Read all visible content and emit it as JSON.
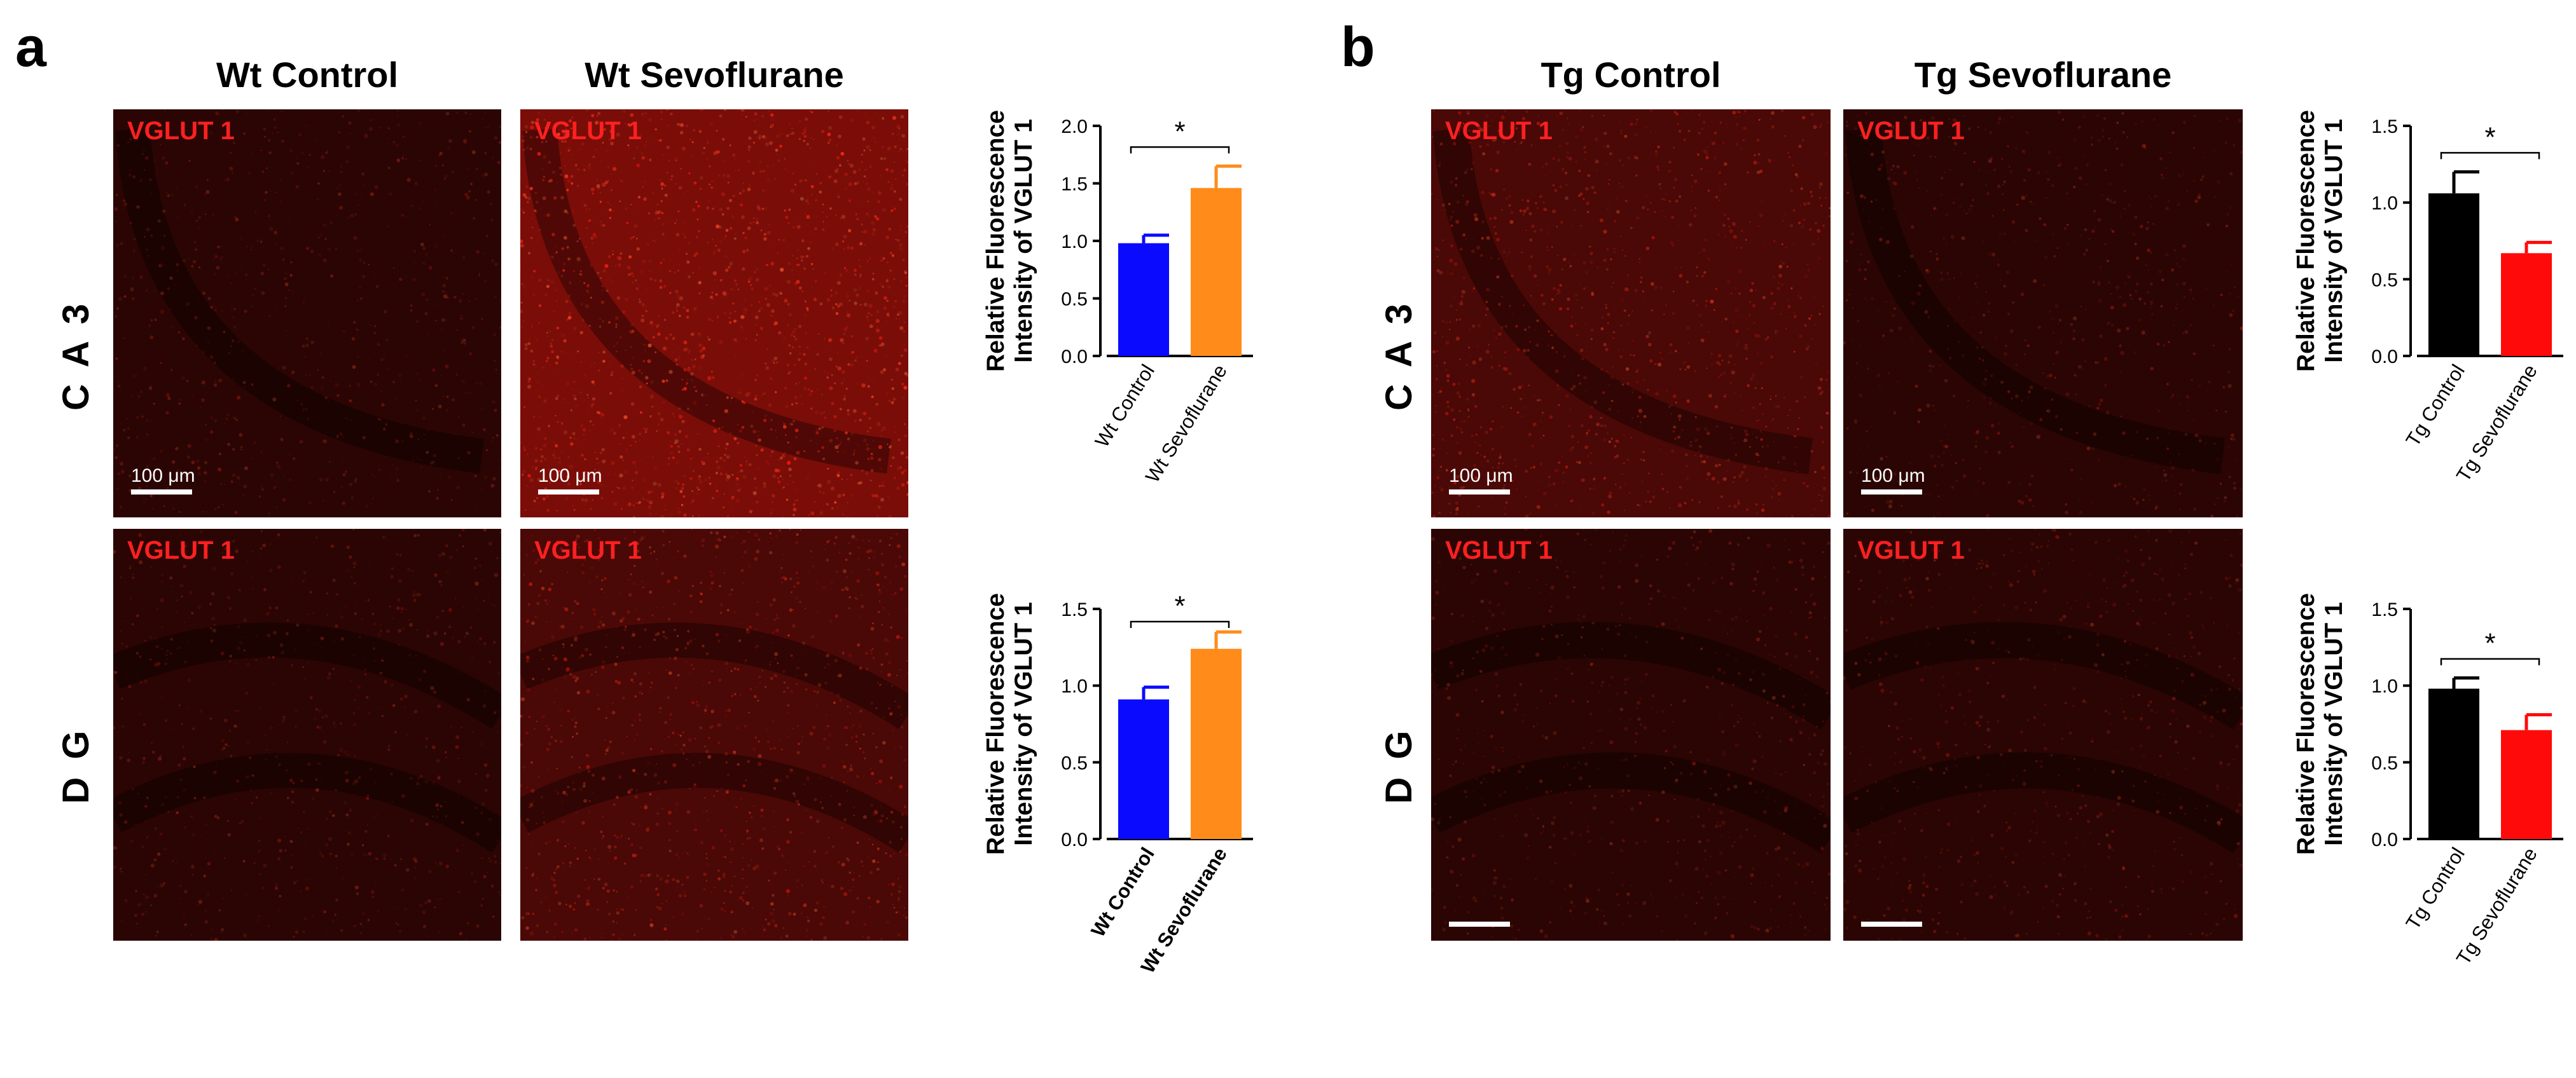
{
  "figure": {
    "panel_a": {
      "letter": "a",
      "col_titles": [
        "Wt Control",
        "Wt Sevoflurane"
      ],
      "row_labels": [
        "C A 3",
        "D G"
      ],
      "images": [
        {
          "stain": "VGLUT 1",
          "scale": "100 μm",
          "brightness": "low",
          "pattern": "ca3"
        },
        {
          "stain": "VGLUT 1",
          "scale": "100 μm",
          "brightness": "high",
          "pattern": "ca3"
        },
        {
          "stain": "VGLUT 1",
          "scale": "",
          "brightness": "low",
          "pattern": "dg"
        },
        {
          "stain": "VGLUT 1",
          "scale": "",
          "brightness": "mid",
          "pattern": "dg"
        }
      ]
    },
    "panel_b": {
      "letter": "b",
      "col_titles": [
        "Tg Control",
        "Tg Sevoflurane"
      ],
      "row_labels": [
        "C A 3",
        "D G"
      ],
      "images": [
        {
          "stain": "VGLUT 1",
          "scale": "100 μm",
          "brightness": "mid",
          "pattern": "ca3"
        },
        {
          "stain": "VGLUT 1",
          "scale": "100 μm",
          "brightness": "low",
          "pattern": "ca3"
        },
        {
          "stain": "VGLUT 1",
          "scale": "",
          "brightness": "low",
          "pattern": "dg"
        },
        {
          "stain": "VGLUT 1",
          "scale": "",
          "brightness": "low",
          "pattern": "dg"
        }
      ]
    }
  },
  "chart_data": [
    {
      "type": "bar",
      "id": "a-ca3",
      "categories": [
        "Wt Control",
        "Wt Sevoflurane"
      ],
      "values": [
        0.98,
        1.46
      ],
      "errors": [
        0.07,
        0.19
      ],
      "colors": [
        "#0a0aff",
        "#ff8c1a"
      ],
      "ylabel": [
        "Relative Fluorescence",
        "Intensity of VGLUT 1"
      ],
      "ylim": [
        0,
        2.0
      ],
      "yticks": [
        "0.0",
        "0.5",
        "1.0",
        "1.5",
        "2.0"
      ],
      "significance": "*",
      "bold_labels": false
    },
    {
      "type": "bar",
      "id": "a-dg",
      "categories": [
        "Wt Control",
        "Wt Sevoflurane"
      ],
      "values": [
        0.91,
        1.24
      ],
      "errors": [
        0.08,
        0.11
      ],
      "colors": [
        "#0a0aff",
        "#ff8c1a"
      ],
      "ylabel": [
        "Relative Fluorescence",
        "Intensity of VGLUT 1"
      ],
      "ylim": [
        0,
        1.5
      ],
      "yticks": [
        "0.0",
        "0.5",
        "1.0",
        "1.5"
      ],
      "significance": "*",
      "bold_labels": true
    },
    {
      "type": "bar",
      "id": "b-ca3",
      "categories": [
        "Tg Control",
        "Tg Sevoflurane"
      ],
      "values": [
        1.06,
        0.67
      ],
      "errors": [
        0.14,
        0.07
      ],
      "colors": [
        "#000000",
        "#ff0a0a"
      ],
      "ylabel": [
        "Relative Fluorescence",
        "Intensity of VGLUT 1"
      ],
      "ylim": [
        0,
        1.5
      ],
      "yticks": [
        "0.0",
        "0.5",
        "1.0",
        "1.5"
      ],
      "significance": "*",
      "bold_labels": false
    },
    {
      "type": "bar",
      "id": "b-dg",
      "categories": [
        "Tg Control",
        "Tg Sevoflurane"
      ],
      "values": [
        0.98,
        0.71
      ],
      "errors": [
        0.07,
        0.1
      ],
      "colors": [
        "#000000",
        "#ff0a0a"
      ],
      "ylabel": [
        "Relative Fluorescence",
        "Intensity of VGLUT 1"
      ],
      "ylim": [
        0,
        1.5
      ],
      "yticks": [
        "0.0",
        "0.5",
        "1.0",
        "1.5"
      ],
      "significance": "*",
      "bold_labels": false
    }
  ]
}
